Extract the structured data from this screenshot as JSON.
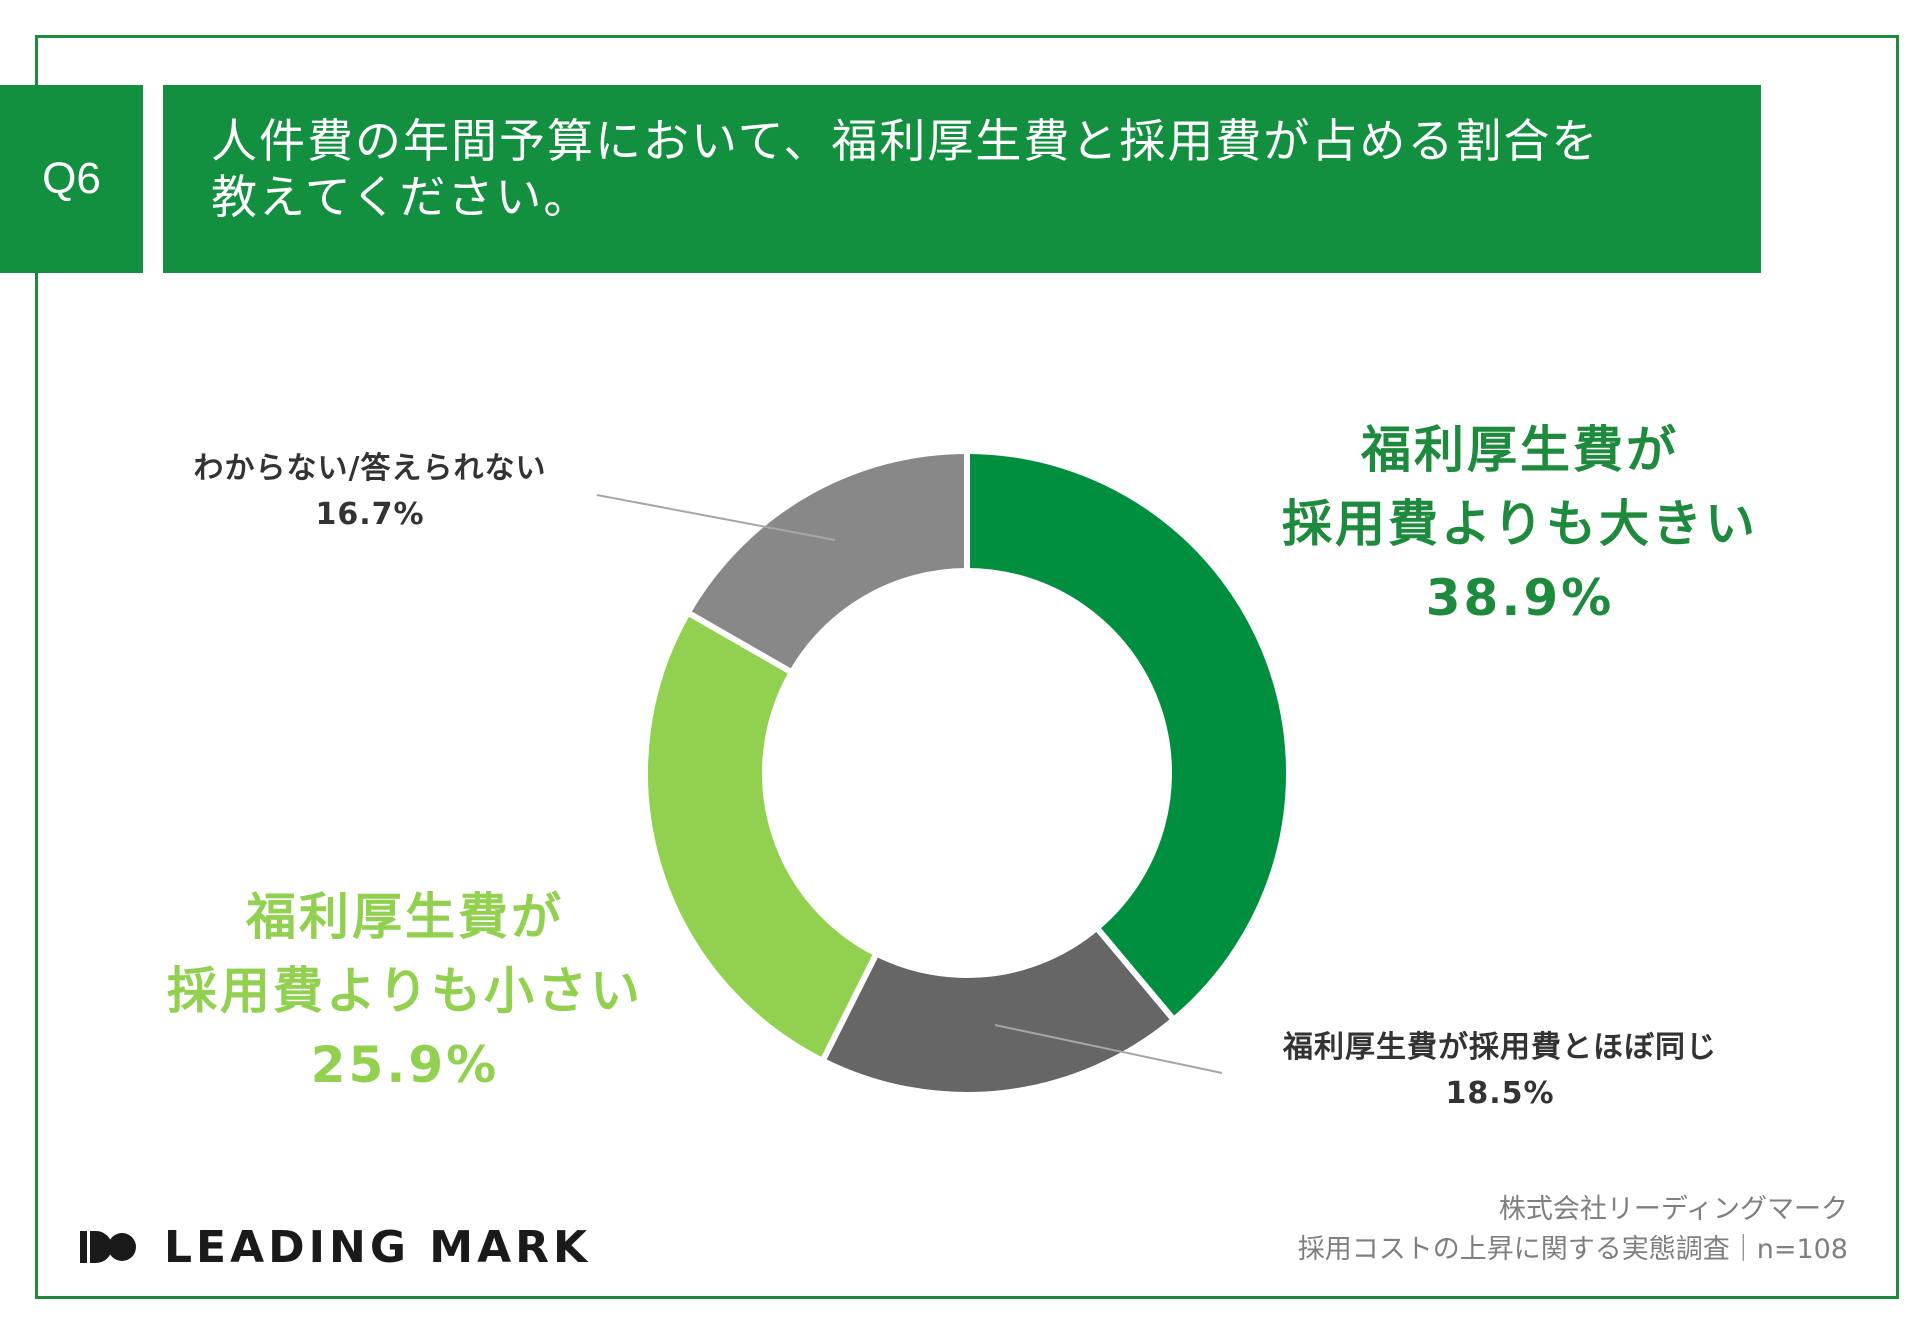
{
  "question": {
    "number": "Q6",
    "line1": "人件費の年間予算において、福利厚生費と採用費が占める割合を",
    "line2": "教えてください。"
  },
  "chart_data": {
    "type": "pie",
    "donut": true,
    "categories": [
      "福利厚生費が採用費よりも大きい",
      "福利厚生費が採用費とほぼ同じ",
      "福利厚生費が採用費よりも小さい",
      "わからない/答えられない"
    ],
    "values": [
      38.9,
      18.5,
      25.9,
      16.7
    ],
    "value_labels": [
      "38.9%",
      "18.5%",
      "25.9%",
      "16.7%"
    ],
    "colors": [
      "#008f3e",
      "#666666",
      "#92d050",
      "#888888"
    ]
  },
  "labels": {
    "larger": {
      "line1": "福利厚生費が",
      "line2": "採用費よりも大きい",
      "value": "38.9%"
    },
    "same": {
      "line1": "福利厚生費が採用費とほぼ同じ",
      "value": "18.5%"
    },
    "smaller": {
      "line1": "福利厚生費が",
      "line2": "採用費よりも小さい",
      "value": "25.9%"
    },
    "unknown": {
      "line1": "わからない/答えられない",
      "value": "16.7%"
    }
  },
  "logo": {
    "text": "LEADING MARK"
  },
  "credit": {
    "line1": "株式会社リーディングマーク",
    "line2": "採用コストの上昇に関する実態調査｜n=108"
  }
}
